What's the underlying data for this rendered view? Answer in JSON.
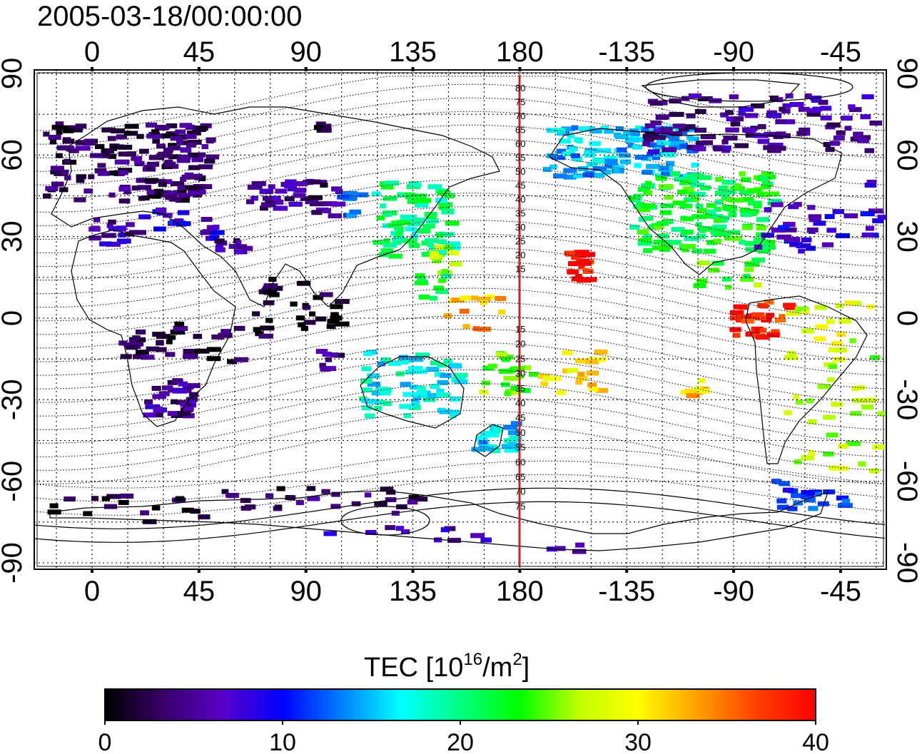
{
  "title": "2005-03-18/00:00:00",
  "map": {
    "top_lon_labels": [
      "0",
      "45",
      "90",
      "135",
      "180",
      "-135",
      "-90",
      "-45"
    ],
    "bottom_lon_labels": [
      "0",
      "45",
      "90",
      "135",
      "180",
      "-135",
      "-90",
      "-45"
    ],
    "left_lat_labels": [
      "90",
      "60",
      "30",
      "0",
      "-30",
      "-60",
      "-90"
    ],
    "right_lat_labels": [
      "90",
      "60",
      "30",
      "0",
      "-30",
      "-60",
      "-90"
    ],
    "dateline_color": "#cc2222",
    "dateline_labels_north": [
      "80",
      "75",
      "70",
      "65",
      "60",
      "55",
      "50",
      "45",
      "40",
      "35",
      "30",
      "25",
      "20",
      "15"
    ],
    "dateline_labels_south": [
      "15",
      "20",
      "25",
      "30",
      "35",
      "40",
      "45",
      "50",
      "55",
      "60",
      "65",
      "70",
      "75"
    ]
  },
  "colorbar": {
    "title": "TEC  [10",
    "title_sup1": "16",
    "title_mid": "/m",
    "title_sup2": "2",
    "title_end": "]",
    "tick_labels": [
      "0",
      "10",
      "20",
      "30",
      "40"
    ],
    "min": 0,
    "max": 40,
    "colors": [
      "#000000",
      "#3a006a",
      "#5a00c8",
      "#0000ff",
      "#0080ff",
      "#00ffff",
      "#00ff80",
      "#00ff00",
      "#c0ff00",
      "#ffff00",
      "#ffa000",
      "#ff4000",
      "#ff0000"
    ]
  }
}
